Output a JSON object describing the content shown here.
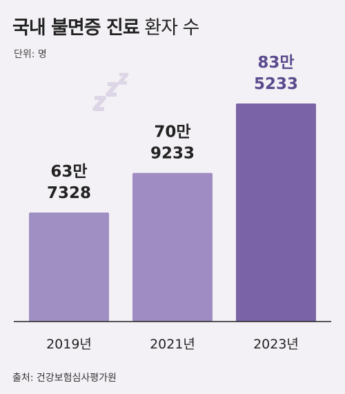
{
  "header": {
    "title_bold": "국내 불면증 진료",
    "title_light": "환자 수",
    "unit": "단위: 명"
  },
  "footer": {
    "source": "출처: 건강보험심사평가원"
  },
  "decoration": {
    "icon": "moon-zzz-icon",
    "color": "#dcd6e6"
  },
  "chart_data": {
    "type": "bar",
    "categories": [
      "2019년",
      "2021년",
      "2023년"
    ],
    "values": [
      637328,
      709233,
      835233
    ],
    "value_labels": [
      [
        "63만",
        "7328"
      ],
      [
        "70만",
        "9233"
      ],
      [
        "83만",
        "5233"
      ]
    ],
    "colors": [
      "#a08fc3",
      "#9e8cc2",
      "#7a63a6"
    ],
    "label_colors": [
      "#222222",
      "#222222",
      "#5a4a8e"
    ],
    "baseline": 0,
    "ylim": [
      0,
      900000
    ],
    "grid": false,
    "legend": "none"
  }
}
